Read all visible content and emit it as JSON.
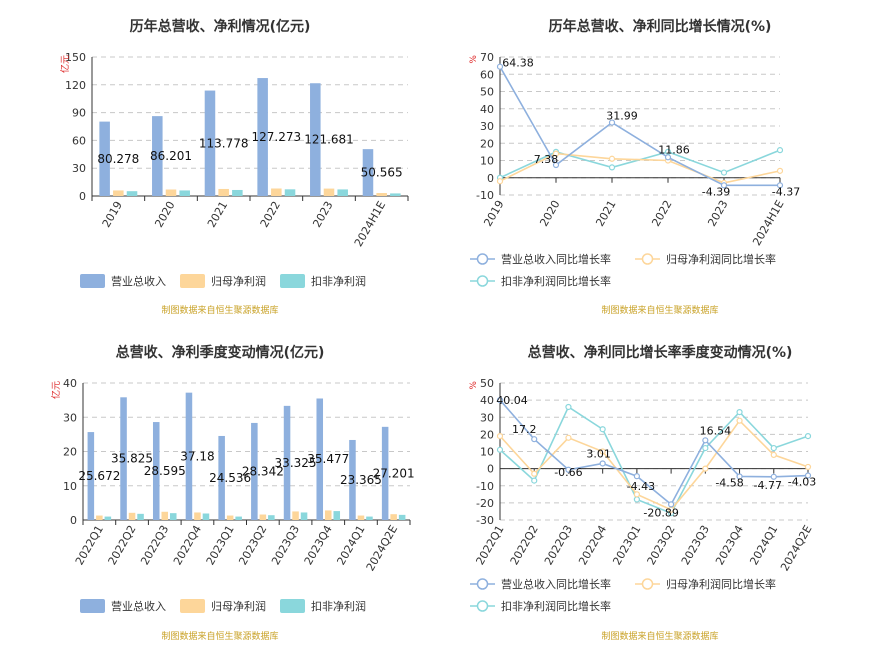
{
  "source_note": "制图数据来自恒生聚源数据库",
  "colors": {
    "revenue": "#8eb0de",
    "net_profit": "#fdd69a",
    "deducted_profit": "#8ad7dc",
    "axis_unit": "#dd2222"
  },
  "chart_data": [
    {
      "type": "bar",
      "title": "历年总营收、净利情况(亿元)",
      "ylabel": "亿元",
      "ylim": [
        0,
        150
      ],
      "yticks": [
        0,
        30,
        60,
        90,
        120,
        150
      ],
      "grid": true,
      "legend_position": "bottom",
      "categories": [
        "2019",
        "2020",
        "2021",
        "2022",
        "2023",
        "2024H1E"
      ],
      "series": [
        {
          "name": "营业总收入",
          "values": [
            80.278,
            86.201,
            113.778,
            127.273,
            121.681,
            50.565
          ],
          "labels": [
            "80.278",
            "86.201",
            "113.778",
            "127.273",
            "121.681",
            "50.565"
          ]
        },
        {
          "name": "归母净利润",
          "values": [
            6.0,
            7.0,
            7.6,
            8.1,
            8.0,
            3.2
          ]
        },
        {
          "name": "扣非净利润",
          "values": [
            5.2,
            6.0,
            6.5,
            7.2,
            7.1,
            2.8
          ]
        }
      ]
    },
    {
      "type": "line",
      "title": "历年总营收、净利同比增长情况(%)",
      "ylabel": "%",
      "ylim": [
        -10,
        70
      ],
      "yticks": [
        -10,
        0,
        10,
        20,
        30,
        40,
        50,
        60,
        70
      ],
      "grid": true,
      "legend_position": "bottom",
      "categories": [
        "2019",
        "2020",
        "2021",
        "2022",
        "2023",
        "2024H1E"
      ],
      "series": [
        {
          "name": "营业总收入同比增长率",
          "values": [
            64.38,
            7.38,
            31.99,
            11.86,
            -4.39,
            -4.37
          ],
          "labels": [
            "64.38",
            "7.38",
            "31.99",
            "11.86",
            "-4.39",
            "-4.37"
          ]
        },
        {
          "name": "归母净利润同比增长率",
          "values": [
            -2,
            14,
            11,
            10,
            -3,
            4
          ]
        },
        {
          "name": "扣非净利润同比增长率",
          "values": [
            0,
            15,
            6,
            15,
            3,
            16
          ]
        }
      ]
    },
    {
      "type": "bar",
      "title": "总营收、净利季度变动情况(亿元)",
      "ylabel": "亿元",
      "ylim": [
        0,
        40
      ],
      "yticks": [
        0,
        10,
        20,
        30,
        40
      ],
      "grid": true,
      "legend_position": "bottom",
      "categories": [
        "2022Q1",
        "2022Q2",
        "2022Q3",
        "2022Q4",
        "2023Q1",
        "2023Q2",
        "2023Q3",
        "2023Q4",
        "2024Q1",
        "2024Q2E"
      ],
      "series": [
        {
          "name": "营业总收入",
          "values": [
            25.672,
            35.825,
            28.595,
            37.18,
            24.536,
            28.342,
            33.325,
            35.477,
            23.365,
            27.201
          ],
          "labels": [
            "25.672",
            "35.825",
            "28.595",
            "37.18",
            "24.536",
            "28.342",
            "33.325",
            "35.477",
            "23.365",
            "27.201"
          ]
        },
        {
          "name": "归母净利润",
          "values": [
            1.3,
            2.1,
            2.4,
            2.2,
            1.3,
            1.6,
            2.5,
            2.8,
            1.3,
            1.7
          ]
        },
        {
          "name": "扣非净利润",
          "values": [
            1.0,
            1.8,
            2.0,
            1.9,
            1.0,
            1.4,
            2.2,
            2.6,
            1.0,
            1.5
          ]
        }
      ]
    },
    {
      "type": "line",
      "title": "总营收、净利同比增长率季度变动情况(%)",
      "ylabel": "%",
      "ylim": [
        -30,
        50
      ],
      "yticks": [
        -30,
        -20,
        -10,
        0,
        10,
        20,
        30,
        40,
        50
      ],
      "grid": true,
      "legend_position": "bottom",
      "categories": [
        "2022Q1",
        "2022Q2",
        "2022Q3",
        "2022Q4",
        "2023Q1",
        "2023Q2",
        "2023Q3",
        "2023Q4",
        "2024Q1",
        "2024Q2E"
      ],
      "series": [
        {
          "name": "营业总收入同比增长率",
          "values": [
            40.04,
            17.2,
            -0.66,
            3.01,
            -4.43,
            -20.89,
            16.54,
            -4.58,
            -4.77,
            -4.03
          ],
          "labels": [
            "40.04",
            "17.2",
            "-0.66",
            "3.01",
            "-4.43",
            "-20.89",
            "16.54",
            "-4.58",
            "-4.77",
            "-4.03"
          ]
        },
        {
          "name": "归母净利润同比增长率",
          "values": [
            19,
            -3,
            18,
            10,
            -15,
            -24,
            0,
            28,
            8,
            1
          ]
        },
        {
          "name": "扣非净利润同比增长率",
          "values": [
            11,
            -7,
            36,
            23,
            -18,
            -26,
            12,
            33,
            12,
            19
          ]
        }
      ]
    }
  ]
}
